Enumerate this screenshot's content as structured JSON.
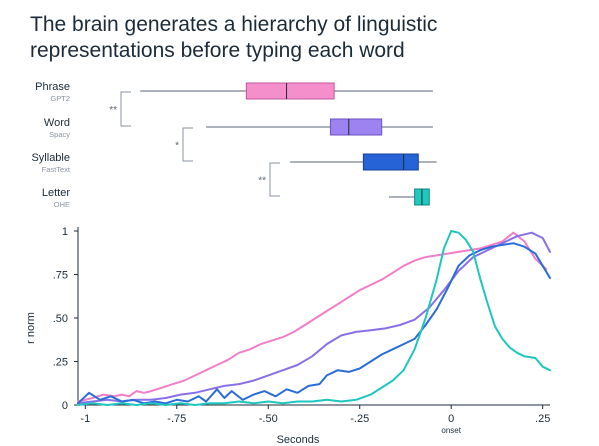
{
  "title": {
    "line1": "The brain generates a hierarchy of linguistic",
    "line2": "representations before typing each word"
  },
  "chart_data": [
    {
      "type": "boxplot",
      "rows": [
        {
          "name": "Phrase",
          "sub": "GPT2",
          "color": "#f58fcb",
          "stroke": "#c0559b",
          "whisker_low": -0.85,
          "q1": -0.56,
          "median": -0.45,
          "q3": -0.32,
          "whisker_high": -0.05
        },
        {
          "name": "Word",
          "sub": "Spacy",
          "color": "#9d83ef",
          "stroke": "#6a52c7",
          "whisker_low": -0.67,
          "q1": -0.33,
          "median": -0.28,
          "q3": -0.19,
          "whisker_high": -0.05
        },
        {
          "name": "Syllable",
          "sub": "FastText",
          "color": "#2563d6",
          "stroke": "#163f99",
          "whisker_low": -0.44,
          "q1": -0.24,
          "median": -0.13,
          "q3": -0.09,
          "whisker_high": -0.04
        },
        {
          "name": "Letter",
          "sub": "OHE",
          "color": "#1fc9bd",
          "stroke": "#11877f",
          "whisker_low": -0.17,
          "q1": -0.1,
          "median": -0.08,
          "q3": -0.06,
          "whisker_high": -0.06
        }
      ],
      "significance": [
        {
          "from": 0,
          "to": 1,
          "label": "**"
        },
        {
          "from": 1,
          "to": 2,
          "label": "*"
        },
        {
          "from": 2,
          "to": 3,
          "label": "**"
        }
      ]
    },
    {
      "type": "line",
      "xlabel": "Seconds",
      "ylabel": "r norm",
      "xlim": [
        -1.02,
        0.27
      ],
      "ylim": [
        0,
        1
      ],
      "xticks": [
        {
          "value": -1,
          "label": "-1"
        },
        {
          "value": -0.75,
          "label": "-.75"
        },
        {
          "value": -0.5,
          "label": "-.50"
        },
        {
          "value": -0.25,
          "label": "-.25"
        },
        {
          "value": 0,
          "label": "0"
        },
        {
          "value": 0.25,
          "label": ".25"
        }
      ],
      "onset_label": "onset",
      "yticks": [
        {
          "value": 0,
          "label": "0"
        },
        {
          "value": 0.25,
          "label": ".25"
        },
        {
          "value": 0.5,
          "label": ".50"
        },
        {
          "value": 0.75,
          "label": ".75"
        },
        {
          "value": 1,
          "label": "1"
        }
      ],
      "grid": false,
      "series": [
        {
          "name": "Phrase",
          "color": "#f07ec8",
          "points": [
            [
              -1.02,
              0.02
            ],
            [
              -0.98,
              0.04
            ],
            [
              -0.95,
              0.06
            ],
            [
              -0.92,
              0.05
            ],
            [
              -0.9,
              0.06
            ],
            [
              -0.88,
              0.05
            ],
            [
              -0.86,
              0.08
            ],
            [
              -0.84,
              0.07
            ],
            [
              -0.82,
              0.08
            ],
            [
              -0.79,
              0.1
            ],
            [
              -0.76,
              0.12
            ],
            [
              -0.73,
              0.14
            ],
            [
              -0.7,
              0.17
            ],
            [
              -0.67,
              0.2
            ],
            [
              -0.64,
              0.23
            ],
            [
              -0.61,
              0.26
            ],
            [
              -0.58,
              0.3
            ],
            [
              -0.55,
              0.32
            ],
            [
              -0.52,
              0.35
            ],
            [
              -0.49,
              0.37
            ],
            [
              -0.46,
              0.39
            ],
            [
              -0.43,
              0.42
            ],
            [
              -0.4,
              0.46
            ],
            [
              -0.37,
              0.5
            ],
            [
              -0.34,
              0.54
            ],
            [
              -0.31,
              0.58
            ],
            [
              -0.28,
              0.62
            ],
            [
              -0.25,
              0.66
            ],
            [
              -0.22,
              0.69
            ],
            [
              -0.19,
              0.72
            ],
            [
              -0.16,
              0.76
            ],
            [
              -0.13,
              0.8
            ],
            [
              -0.1,
              0.83
            ],
            [
              -0.07,
              0.85
            ],
            [
              -0.04,
              0.86
            ],
            [
              -0.01,
              0.87
            ],
            [
              0.02,
              0.88
            ],
            [
              0.05,
              0.89
            ],
            [
              0.08,
              0.9
            ],
            [
              0.11,
              0.92
            ],
            [
              0.14,
              0.94
            ],
            [
              0.17,
              0.99
            ],
            [
              0.2,
              0.94
            ],
            [
              0.23,
              0.84
            ],
            [
              0.26,
              0.78
            ]
          ]
        },
        {
          "name": "Word",
          "color": "#8a70e6",
          "points": [
            [
              -1.02,
              0.01
            ],
            [
              -0.98,
              0.02
            ],
            [
              -0.94,
              0.03
            ],
            [
              -0.9,
              0.02
            ],
            [
              -0.86,
              0.03
            ],
            [
              -0.82,
              0.03
            ],
            [
              -0.78,
              0.04
            ],
            [
              -0.74,
              0.06
            ],
            [
              -0.7,
              0.07
            ],
            [
              -0.66,
              0.09
            ],
            [
              -0.62,
              0.11
            ],
            [
              -0.58,
              0.12
            ],
            [
              -0.54,
              0.14
            ],
            [
              -0.5,
              0.17
            ],
            [
              -0.46,
              0.2
            ],
            [
              -0.42,
              0.23
            ],
            [
              -0.38,
              0.28
            ],
            [
              -0.34,
              0.35
            ],
            [
              -0.3,
              0.4
            ],
            [
              -0.26,
              0.42
            ],
            [
              -0.22,
              0.43
            ],
            [
              -0.18,
              0.44
            ],
            [
              -0.14,
              0.46
            ],
            [
              -0.1,
              0.49
            ],
            [
              -0.06,
              0.56
            ],
            [
              -0.02,
              0.66
            ],
            [
              0.02,
              0.77
            ],
            [
              0.06,
              0.85
            ],
            [
              0.1,
              0.89
            ],
            [
              0.14,
              0.93
            ],
            [
              0.18,
              0.97
            ],
            [
              0.22,
              0.99
            ],
            [
              0.25,
              0.96
            ],
            [
              0.27,
              0.88
            ]
          ]
        },
        {
          "name": "Syllable",
          "color": "#2b6dd6",
          "points": [
            [
              -1.02,
              0.01
            ],
            [
              -0.99,
              0.07
            ],
            [
              -0.96,
              0.03
            ],
            [
              -0.93,
              0.05
            ],
            [
              -0.9,
              0.02
            ],
            [
              -0.87,
              0.03
            ],
            [
              -0.84,
              0.01
            ],
            [
              -0.81,
              0.02
            ],
            [
              -0.78,
              0.01
            ],
            [
              -0.75,
              0.03
            ],
            [
              -0.72,
              0.02
            ],
            [
              -0.69,
              0.05
            ],
            [
              -0.67,
              0.02
            ],
            [
              -0.64,
              0.09
            ],
            [
              -0.62,
              0.04
            ],
            [
              -0.6,
              0.08
            ],
            [
              -0.57,
              0.03
            ],
            [
              -0.54,
              0.06
            ],
            [
              -0.51,
              0.08
            ],
            [
              -0.48,
              0.05
            ],
            [
              -0.45,
              0.09
            ],
            [
              -0.42,
              0.07
            ],
            [
              -0.39,
              0.11
            ],
            [
              -0.36,
              0.12
            ],
            [
              -0.34,
              0.17
            ],
            [
              -0.31,
              0.2
            ],
            [
              -0.28,
              0.19
            ],
            [
              -0.25,
              0.21
            ],
            [
              -0.22,
              0.25
            ],
            [
              -0.19,
              0.29
            ],
            [
              -0.16,
              0.32
            ],
            [
              -0.13,
              0.35
            ],
            [
              -0.1,
              0.38
            ],
            [
              -0.07,
              0.46
            ],
            [
              -0.04,
              0.55
            ],
            [
              -0.01,
              0.67
            ],
            [
              0.02,
              0.8
            ],
            [
              0.05,
              0.86
            ],
            [
              0.08,
              0.89
            ],
            [
              0.11,
              0.91
            ],
            [
              0.14,
              0.92
            ],
            [
              0.17,
              0.93
            ],
            [
              0.2,
              0.91
            ],
            [
              0.23,
              0.87
            ],
            [
              0.25,
              0.8
            ],
            [
              0.27,
              0.73
            ]
          ]
        },
        {
          "name": "Letter",
          "color": "#1fc6bf",
          "points": [
            [
              -1.02,
              0.0
            ],
            [
              -0.98,
              0.01
            ],
            [
              -0.94,
              0.0
            ],
            [
              -0.9,
              0.01
            ],
            [
              -0.86,
              0.0
            ],
            [
              -0.82,
              0.01
            ],
            [
              -0.78,
              0.0
            ],
            [
              -0.74,
              0.01
            ],
            [
              -0.7,
              0.0
            ],
            [
              -0.66,
              0.01
            ],
            [
              -0.62,
              0.01
            ],
            [
              -0.58,
              0.02
            ],
            [
              -0.54,
              0.01
            ],
            [
              -0.5,
              0.02
            ],
            [
              -0.46,
              0.01
            ],
            [
              -0.42,
              0.02
            ],
            [
              -0.38,
              0.02
            ],
            [
              -0.34,
              0.03
            ],
            [
              -0.3,
              0.02
            ],
            [
              -0.26,
              0.03
            ],
            [
              -0.22,
              0.06
            ],
            [
              -0.19,
              0.1
            ],
            [
              -0.16,
              0.14
            ],
            [
              -0.13,
              0.2
            ],
            [
              -0.1,
              0.32
            ],
            [
              -0.07,
              0.5
            ],
            [
              -0.04,
              0.72
            ],
            [
              -0.02,
              0.9
            ],
            [
              0.0,
              1.0
            ],
            [
              0.02,
              0.99
            ],
            [
              0.04,
              0.95
            ],
            [
              0.06,
              0.88
            ],
            [
              0.08,
              0.72
            ],
            [
              0.1,
              0.58
            ],
            [
              0.12,
              0.45
            ],
            [
              0.14,
              0.38
            ],
            [
              0.16,
              0.33
            ],
            [
              0.18,
              0.3
            ],
            [
              0.2,
              0.28
            ],
            [
              0.23,
              0.27
            ],
            [
              0.25,
              0.22
            ],
            [
              0.27,
              0.2
            ]
          ]
        }
      ]
    }
  ]
}
